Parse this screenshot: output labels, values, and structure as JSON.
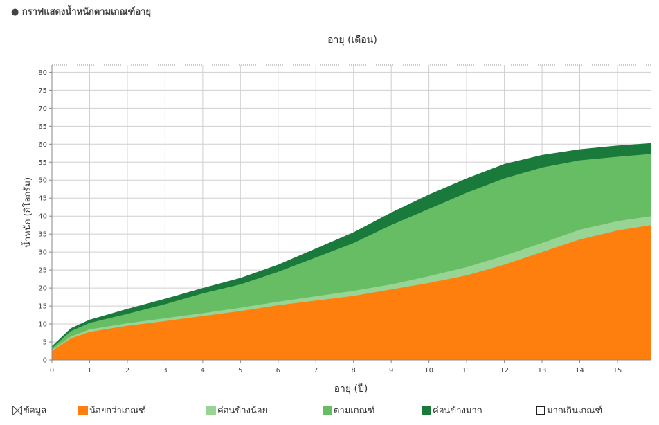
{
  "header": {
    "title": "● กราฟแสดงน้ำหนักตามเกณฑ์อายุ"
  },
  "chart_data": {
    "type": "area",
    "title": "",
    "x2label": "อายุ (เดือน)",
    "xlabel": "อายุ (ปี)",
    "ylabel": "น้ำหนัก (กิโลกรัม)",
    "xlim": [
      0,
      15.9
    ],
    "ylim": [
      0,
      82
    ],
    "x_ticks": [
      0,
      1,
      2,
      3,
      4,
      5,
      6,
      7,
      8,
      9,
      10,
      11,
      12,
      13,
      14,
      15
    ],
    "y_ticks": [
      0,
      5,
      10,
      15,
      20,
      25,
      30,
      35,
      40,
      45,
      50,
      55,
      60,
      65,
      70,
      75,
      80
    ],
    "grid": true,
    "x": [
      0,
      0.5,
      1,
      2,
      3,
      4,
      5,
      6,
      7,
      8,
      9,
      10,
      11,
      12,
      13,
      14,
      15,
      15.9
    ],
    "series": [
      {
        "name": "น้อยกว่าเกณฑ์",
        "color": "#ff7f0e",
        "values": [
          2.5,
          6,
          7.8,
          9.5,
          10.8,
          12.2,
          13.6,
          15.2,
          16.5,
          17.8,
          19.6,
          21.4,
          23.5,
          26.5,
          30,
          33.5,
          36,
          37.5
        ]
      },
      {
        "name": "ค่อนข้างน้อย",
        "color": "#98d594",
        "values": [
          2.8,
          6.5,
          8.5,
          10.2,
          11.6,
          13,
          14.5,
          16.2,
          17.7,
          19.2,
          21,
          23.3,
          25.8,
          29,
          32.5,
          36.2,
          38.6,
          40
        ]
      },
      {
        "name": "ตามเกณฑ์",
        "color": "#66bd63",
        "values": [
          3.3,
          8,
          10.3,
          12.8,
          15.5,
          18.5,
          21,
          24.5,
          28.5,
          32.5,
          37.5,
          42,
          46.5,
          50.5,
          53.5,
          55.5,
          56.5,
          57.3
        ]
      },
      {
        "name": "ค่อนข้างมาก",
        "color": "#1a7a3c",
        "values": [
          3.8,
          8.8,
          11.2,
          14.2,
          17,
          20,
          22.8,
          26.5,
          31,
          35.5,
          41,
          46,
          50.5,
          54.5,
          57,
          58.6,
          59.6,
          60.3
        ]
      }
    ],
    "legend": {
      "placement": "bottom",
      "items": [
        {
          "label": "ข้อมูล",
          "style": "cross"
        },
        {
          "label": "น้อยกว่าเกณฑ์",
          "color": "#ff7f0e"
        },
        {
          "label": "ค่อนข้างน้อย",
          "color": "#98d594"
        },
        {
          "label": "ตามเกณฑ์",
          "color": "#66bd63"
        },
        {
          "label": "ค่อนข้างมาก",
          "color": "#1a7a3c"
        },
        {
          "label": "มากเกินเกณฑ์",
          "style": "outline"
        }
      ]
    }
  }
}
